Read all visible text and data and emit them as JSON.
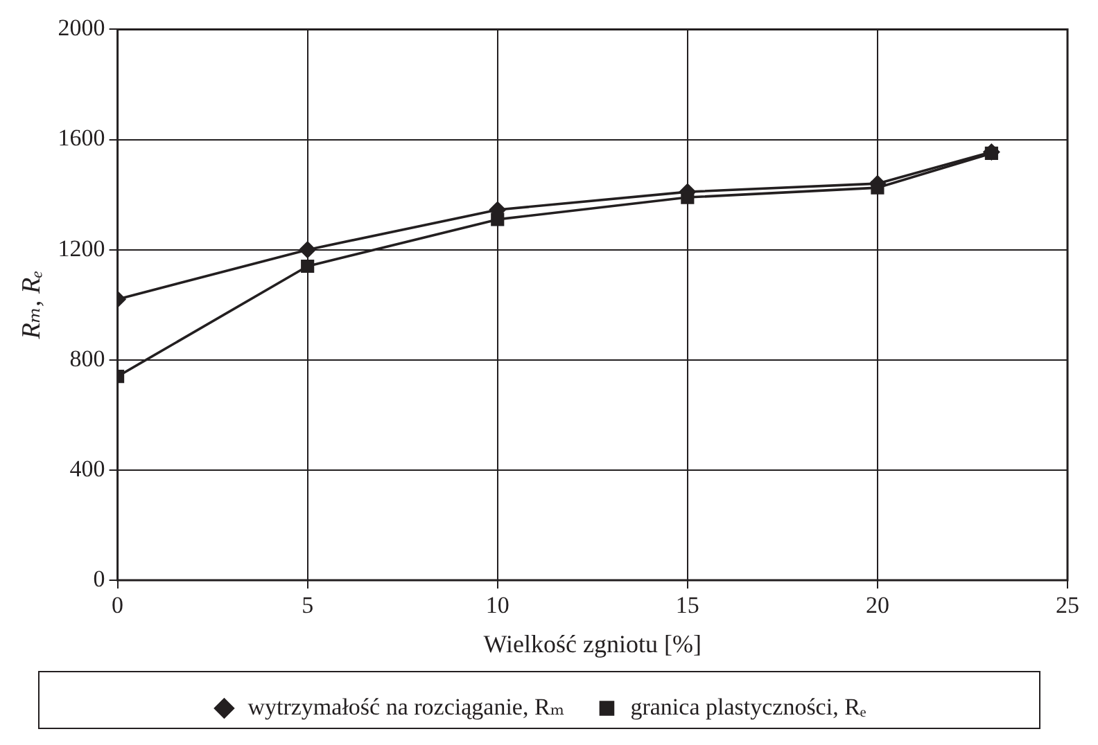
{
  "chart_data": {
    "type": "line",
    "xlabel": "Wielkość zgniotu [%]",
    "ylabel": "Rₘ, Rₑ",
    "x": [
      0,
      5,
      10,
      15,
      20,
      23
    ],
    "series": [
      {
        "name": "wytrzymałość na rozciąganie, Rₘ",
        "color": "#231f20",
        "marker": "diamond",
        "values": [
          1020,
          1200,
          1345,
          1410,
          1440,
          1555
        ]
      },
      {
        "name": "granica plastyczności, Rₑ",
        "color": "#231f20",
        "marker": "square",
        "values": [
          740,
          1140,
          1310,
          1390,
          1425,
          1550
        ]
      }
    ],
    "xlim": [
      0,
      25
    ],
    "xticks": [
      0,
      5,
      10,
      15,
      20,
      25
    ],
    "ylim": [
      0,
      2000
    ],
    "yticks": [
      0,
      400,
      800,
      1200,
      1600,
      2000
    ],
    "grid": true,
    "legend": "bottom",
    "line_style": "solid"
  }
}
